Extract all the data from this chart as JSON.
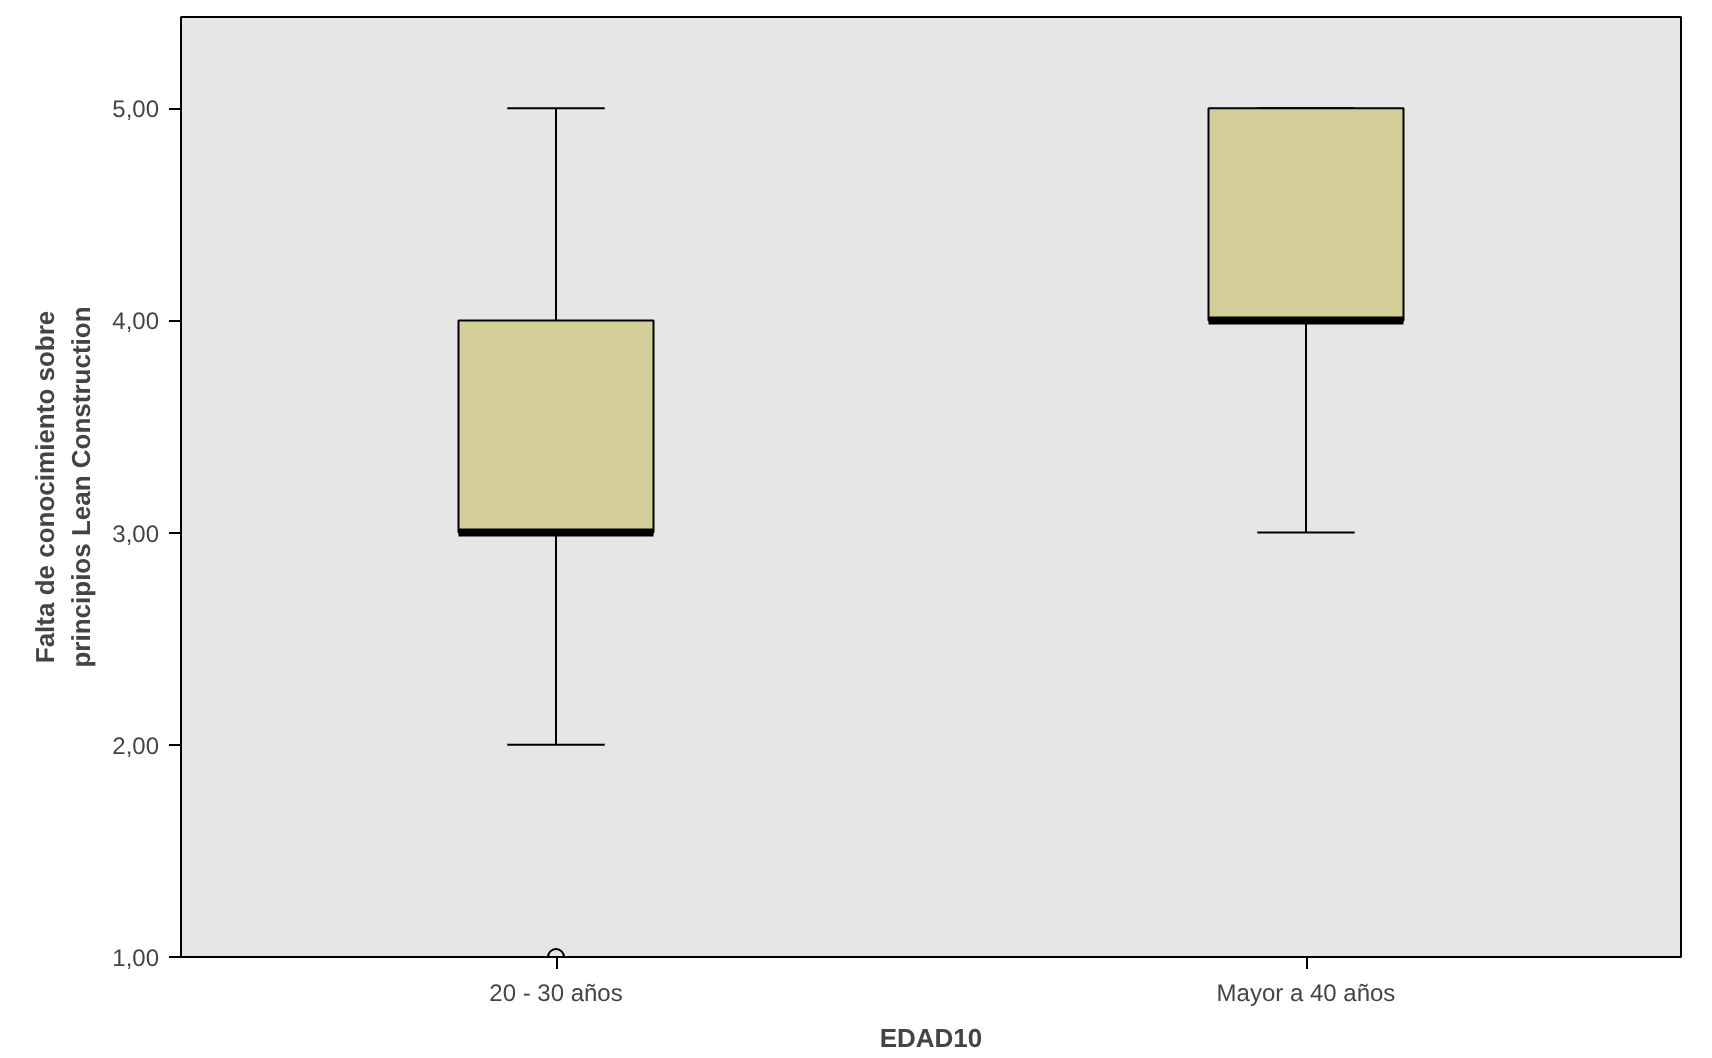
{
  "chart_data": {
    "type": "box",
    "xlabel": "EDAD10",
    "ylabel": "Falta de conocimiento sobre\nprincipios Lean Construction",
    "categories": [
      "20 - 30 años",
      "Mayor a 40 años"
    ],
    "boxes": [
      {
        "low": 2,
        "q1": 3,
        "median": 3,
        "q3": 4,
        "high": 5,
        "outliers": [
          1
        ]
      },
      {
        "low": 3,
        "q1": 4,
        "median": 4,
        "q3": 5,
        "high": 5
      }
    ],
    "color": "#d3ce97",
    "ylim": [
      1,
      5.43
    ],
    "yticks": [
      {
        "value": 1,
        "label": "1,00"
      },
      {
        "value": 2,
        "label": "2,00"
      },
      {
        "value": 3,
        "label": "3,00"
      },
      {
        "value": 4,
        "label": "4,00"
      },
      {
        "value": 5,
        "label": "5,00"
      }
    ],
    "grid": false
  }
}
